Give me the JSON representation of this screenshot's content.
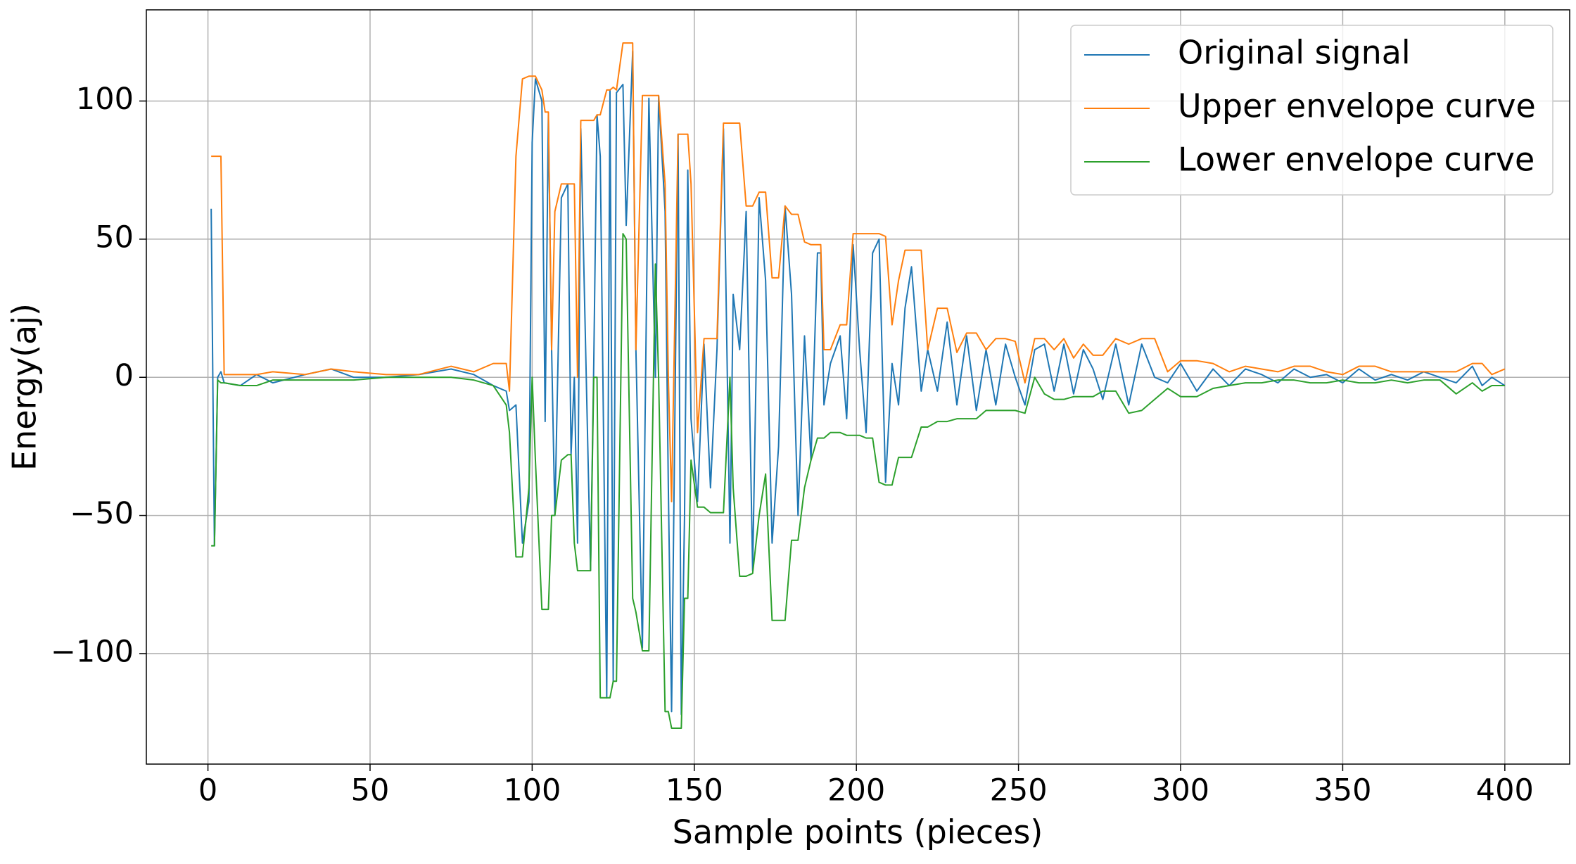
{
  "chart_data": {
    "type": "line",
    "xlabel": "Sample points (pieces)",
    "ylabel": "Energy(aj)",
    "x": [
      1,
      2,
      3,
      4,
      5,
      10,
      15,
      20,
      30,
      38,
      45,
      55,
      65,
      75,
      82,
      88,
      92,
      93,
      95,
      97,
      99,
      100,
      101,
      103,
      104,
      105,
      106,
      107,
      109,
      111,
      112,
      113,
      114,
      115,
      118,
      119,
      120,
      121,
      123,
      124,
      125,
      126,
      128,
      129,
      131,
      132,
      134,
      136,
      138,
      139,
      141,
      142,
      143,
      145,
      146,
      147,
      148,
      149,
      151,
      153,
      155,
      157,
      159,
      161,
      162,
      164,
      166,
      168,
      170,
      172,
      174,
      176,
      178,
      180,
      182,
      184,
      186,
      188,
      189,
      190,
      192,
      195,
      197,
      199,
      201,
      203,
      205,
      207,
      209,
      211,
      213,
      215,
      217,
      220,
      222,
      225,
      228,
      231,
      234,
      237,
      240,
      243,
      246,
      249,
      252,
      255,
      258,
      261,
      264,
      267,
      270,
      273,
      276,
      280,
      284,
      288,
      292,
      296,
      300,
      305,
      310,
      315,
      320,
      325,
      330,
      335,
      340,
      345,
      350,
      355,
      360,
      365,
      370,
      375,
      380,
      385,
      390,
      393,
      396,
      400
    ],
    "series": [
      {
        "name": "Original signal",
        "color": "#1f77b4",
        "values": [
          61,
          -61,
          0,
          2,
          -2,
          -3,
          1,
          -2,
          1,
          3,
          0,
          0,
          1,
          3,
          1,
          -3,
          -5,
          -12,
          -10,
          -60,
          -45,
          85,
          108,
          100,
          -16,
          95,
          10,
          -50,
          65,
          70,
          -28,
          0,
          -60,
          90,
          -70,
          5,
          95,
          80,
          -116,
          104,
          -110,
          103,
          106,
          55,
          118,
          10,
          -98,
          101,
          0,
          102,
          60,
          -40,
          -121,
          88,
          -122,
          -50,
          75,
          -15,
          -45,
          12,
          -40,
          10,
          90,
          -60,
          30,
          10,
          60,
          -70,
          65,
          35,
          -60,
          -25,
          62,
          30,
          -50,
          15,
          -30,
          45,
          45,
          -10,
          5,
          15,
          -15,
          48,
          10,
          -20,
          45,
          50,
          -38,
          5,
          -10,
          25,
          40,
          -5,
          10,
          -5,
          20,
          -10,
          15,
          -12,
          10,
          -10,
          12,
          0,
          -10,
          10,
          12,
          -5,
          12,
          -6,
          10,
          3,
          -8,
          12,
          -10,
          12,
          0,
          -2,
          5,
          -5,
          3,
          -3,
          3,
          1,
          -2,
          3,
          0,
          1,
          -2,
          3,
          -1,
          1,
          -1,
          2,
          0,
          -2,
          4,
          -3,
          0,
          -3
        ]
      },
      {
        "name": "Upper envelope curve",
        "color": "#ff7f0e",
        "values": [
          80,
          80,
          80,
          80,
          1,
          1,
          1,
          2,
          1,
          3,
          2,
          1,
          1,
          4,
          2,
          5,
          5,
          -5,
          80,
          108,
          109,
          109,
          109,
          104,
          96,
          96,
          10,
          60,
          70,
          70,
          70,
          70,
          0,
          93,
          93,
          93,
          95,
          95,
          104,
          104,
          105,
          104,
          121,
          121,
          121,
          10,
          102,
          102,
          102,
          102,
          70,
          0,
          -45,
          88,
          88,
          88,
          88,
          70,
          -20,
          14,
          14,
          14,
          92,
          92,
          92,
          92,
          62,
          62,
          67,
          67,
          36,
          36,
          62,
          59,
          59,
          49,
          48,
          48,
          48,
          10,
          10,
          19,
          19,
          52,
          52,
          52,
          52,
          52,
          51,
          19,
          35,
          46,
          46,
          46,
          10,
          25,
          25,
          9,
          16,
          16,
          10,
          14,
          14,
          13,
          -2,
          14,
          14,
          10,
          14,
          7,
          12,
          8,
          8,
          14,
          12,
          14,
          14,
          2,
          6,
          6,
          5,
          2,
          4,
          3,
          2,
          4,
          4,
          2,
          1,
          4,
          4,
          2,
          2,
          2,
          2,
          2,
          5,
          5,
          1,
          3
        ]
      },
      {
        "name": "Lower envelope curve",
        "color": "#2ca02c",
        "values": [
          -61,
          -61,
          -1,
          -2,
          -2,
          -3,
          -3,
          -1,
          -1,
          -1,
          -1,
          0,
          0,
          0,
          -1,
          -3,
          -10,
          -20,
          -65,
          -65,
          -40,
          0,
          -30,
          -84,
          -84,
          -84,
          -50,
          -50,
          -30,
          -28,
          -28,
          -60,
          -70,
          -70,
          -70,
          0,
          0,
          -116,
          -116,
          -116,
          -110,
          -110,
          52,
          50,
          -80,
          -85,
          -99,
          -99,
          41,
          0,
          -121,
          -121,
          -127,
          -127,
          -127,
          -80,
          -80,
          -30,
          -47,
          -47,
          -49,
          -49,
          -49,
          0,
          -40,
          -72,
          -72,
          -71,
          -50,
          -35,
          -88,
          -88,
          -88,
          -59,
          -59,
          -40,
          -30,
          -22,
          -22,
          -22,
          -20,
          -20,
          -21,
          -21,
          -21,
          -22,
          -22,
          -38,
          -39,
          -39,
          -29,
          -29,
          -29,
          -18,
          -18,
          -16,
          -16,
          -15,
          -15,
          -15,
          -12,
          -12,
          -12,
          -12,
          -13,
          0,
          -6,
          -8,
          -8,
          -7,
          -7,
          -7,
          -5,
          -5,
          -13,
          -12,
          -8,
          -4,
          -7,
          -7,
          -4,
          -3,
          -2,
          -2,
          -1,
          -1,
          -2,
          -2,
          -1,
          -2,
          -2,
          -1,
          -2,
          -1,
          -1,
          -6,
          -2,
          -5,
          -3,
          -3
        ]
      }
    ],
    "xlim": [
      -19,
      420
    ],
    "ylim": [
      -140,
      133
    ],
    "xticks": [
      0,
      50,
      100,
      150,
      200,
      250,
      300,
      350,
      400
    ],
    "yticks": [
      {
        "value": -100,
        "label": "−100"
      },
      {
        "value": -50,
        "label": "−50"
      },
      0,
      50,
      100
    ],
    "grid": true,
    "legend": "upper right"
  }
}
